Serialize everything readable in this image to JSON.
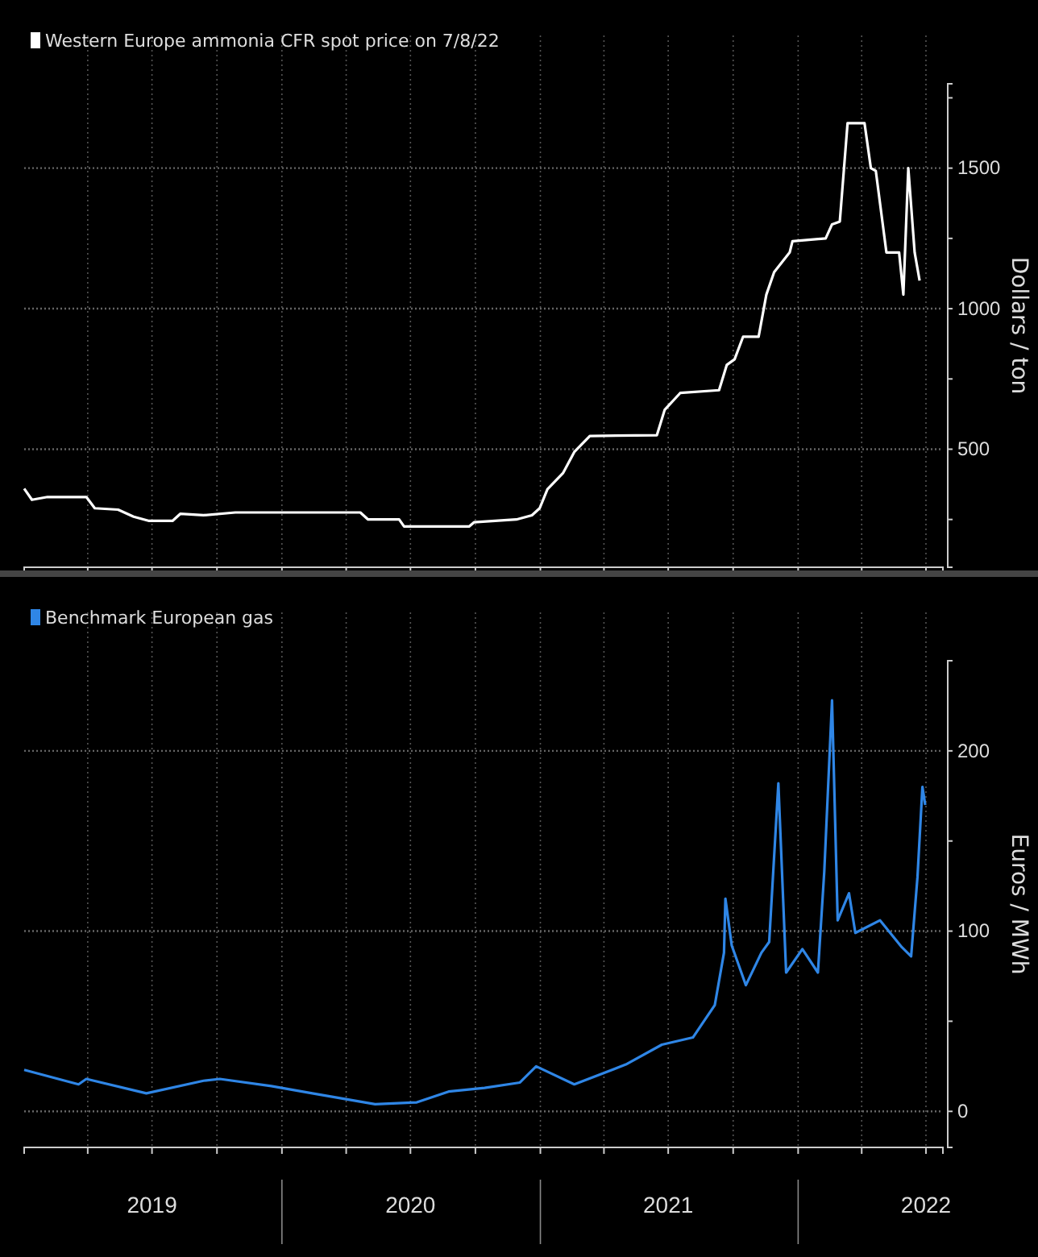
{
  "chart_data": [
    {
      "type": "line",
      "legend": "top left",
      "grid": true,
      "tick_labels": "y",
      "ylabel": "Dollars / ton",
      "xlim": [
        "2019-01-01",
        "2022-07-25"
      ],
      "xticks": [
        {
          "value": "2019-04-01",
          "label": null
        },
        {
          "value": "2019-07-01",
          "label": null
        },
        {
          "value": "2019-10-01",
          "label": null
        },
        {
          "value": "2020-01-01",
          "label": null
        },
        {
          "value": "2020-04-01",
          "label": null
        },
        {
          "value": "2020-07-01",
          "label": null
        },
        {
          "value": "2020-10-01",
          "label": null
        },
        {
          "value": "2021-01-01",
          "label": null
        },
        {
          "value": "2021-04-01",
          "label": null
        },
        {
          "value": "2021-07-01",
          "label": null
        },
        {
          "value": "2021-10-01",
          "label": null
        },
        {
          "value": "2022-01-01",
          "label": null
        },
        {
          "value": "2022-04-01",
          "label": null
        },
        {
          "value": "2022-07-01",
          "label": null
        }
      ],
      "ylim": [
        80,
        1800
      ],
      "yticks": [
        {
          "value": 250,
          "label": null
        },
        500,
        {
          "value": 750,
          "label": null
        },
        1000,
        {
          "value": 1250,
          "label": null
        },
        1500,
        {
          "value": 1750,
          "label": null
        }
      ],
      "series": [
        {
          "name": "Western Europe ammonia CFR spot price on 7/8/22",
          "color": "#ffffff",
          "x": [
            "2019-01-01",
            "2019-01-12",
            "2019-02-03",
            "2019-03-30",
            "2019-04-11",
            "2019-05-14",
            "2019-06-05",
            "2019-06-27",
            "2019-07-30",
            "2019-08-10",
            "2019-09-12",
            "2019-10-27",
            "2020-04-21",
            "2020-05-02",
            "2020-06-15",
            "2020-06-22",
            "2020-09-22",
            "2020-09-29",
            "2020-11-28",
            "2020-12-20",
            "2020-12-31",
            "2021-01-11",
            "2021-02-02",
            "2021-02-18",
            "2021-03-12",
            "2021-06-15",
            "2021-06-26",
            "2021-07-18",
            "2021-09-11",
            "2021-09-22",
            "2021-10-03",
            "2021-10-15",
            "2021-11-06",
            "2021-11-17",
            "2021-11-28",
            "2021-12-20",
            "2021-12-24",
            "2022-02-09",
            "2022-02-18",
            "2022-03-01",
            "2022-03-12",
            "2022-04-05",
            "2022-04-14",
            "2022-04-21",
            "2022-05-06",
            "2022-05-24",
            "2022-05-30",
            "2022-06-06",
            "2022-06-15",
            "2022-06-22"
          ],
          "values": [
            360,
            320,
            330,
            330,
            290,
            285,
            260,
            245,
            245,
            270,
            265,
            275,
            275,
            250,
            250,
            225,
            225,
            240,
            250,
            265,
            290,
            358,
            415,
            490,
            547,
            550,
            640,
            700,
            710,
            800,
            820,
            900,
            900,
            1050,
            1130,
            1200,
            1240,
            1250,
            1300,
            1310,
            1660,
            1660,
            1500,
            1490,
            1200,
            1200,
            1050,
            1500,
            1200,
            1100
          ]
        }
      ]
    },
    {
      "type": "line",
      "legend": "top left",
      "grid": true,
      "ylabel": "Euros / MWh",
      "xlim": [
        "2019-01-01",
        "2022-07-25"
      ],
      "xticks": [
        {
          "value": "2019-04-01",
          "label": null
        },
        {
          "value": "2019-07-01",
          "label": "2019"
        },
        {
          "value": "2019-10-01",
          "label": null
        },
        {
          "value": "2020-01-01",
          "label": null
        },
        {
          "value": "2020-04-01",
          "label": null
        },
        {
          "value": "2020-07-01",
          "label": "2020"
        },
        {
          "value": "2020-10-01",
          "label": null
        },
        {
          "value": "2021-01-01",
          "label": null
        },
        {
          "value": "2021-04-01",
          "label": null
        },
        {
          "value": "2021-07-01",
          "label": "2021"
        },
        {
          "value": "2021-10-01",
          "label": null
        },
        {
          "value": "2022-01-01",
          "label": null
        },
        {
          "value": "2022-04-01",
          "label": null
        },
        {
          "value": "2022-07-01",
          "label": "2022"
        }
      ],
      "ylim": [
        -20,
        250
      ],
      "yticks": [
        0,
        {
          "value": 50,
          "label": null
        },
        100,
        {
          "value": 150,
          "label": null
        },
        200
      ],
      "series": [
        {
          "name": "Benchmark European gas",
          "color": "#2f86e6",
          "x": [
            "2019-01-01",
            "2019-03-19",
            "2019-03-30",
            "2019-06-23",
            "2019-09-12",
            "2019-10-05",
            "2019-12-17",
            "2020-02-13",
            "2020-05-12",
            "2020-07-10",
            "2020-08-24",
            "2020-10-14",
            "2020-12-03",
            "2020-12-26",
            "2021-02-18",
            "2021-05-02",
            "2021-06-22",
            "2021-08-05",
            "2021-09-05",
            "2021-09-18",
            "2021-09-20",
            "2021-09-29",
            "2021-10-19",
            "2021-11-10",
            "2021-11-21",
            "2021-12-04",
            "2021-12-15",
            "2022-01-07",
            "2022-01-29",
            "2022-02-07",
            "2022-02-18",
            "2022-02-26",
            "2022-03-14",
            "2022-03-23",
            "2022-04-27",
            "2022-05-28",
            "2022-06-10",
            "2022-06-19",
            "2022-06-26",
            "2022-06-30"
          ],
          "values": [
            23,
            15,
            18,
            10,
            17,
            18,
            14,
            10,
            4,
            5,
            11,
            13,
            16,
            25,
            15,
            26,
            37,
            41,
            59,
            88,
            118,
            92,
            70,
            88,
            94,
            182,
            77,
            90,
            77,
            133,
            228,
            106,
            121,
            99,
            106,
            91,
            86,
            130,
            180,
            170
          ]
        }
      ]
    }
  ]
}
